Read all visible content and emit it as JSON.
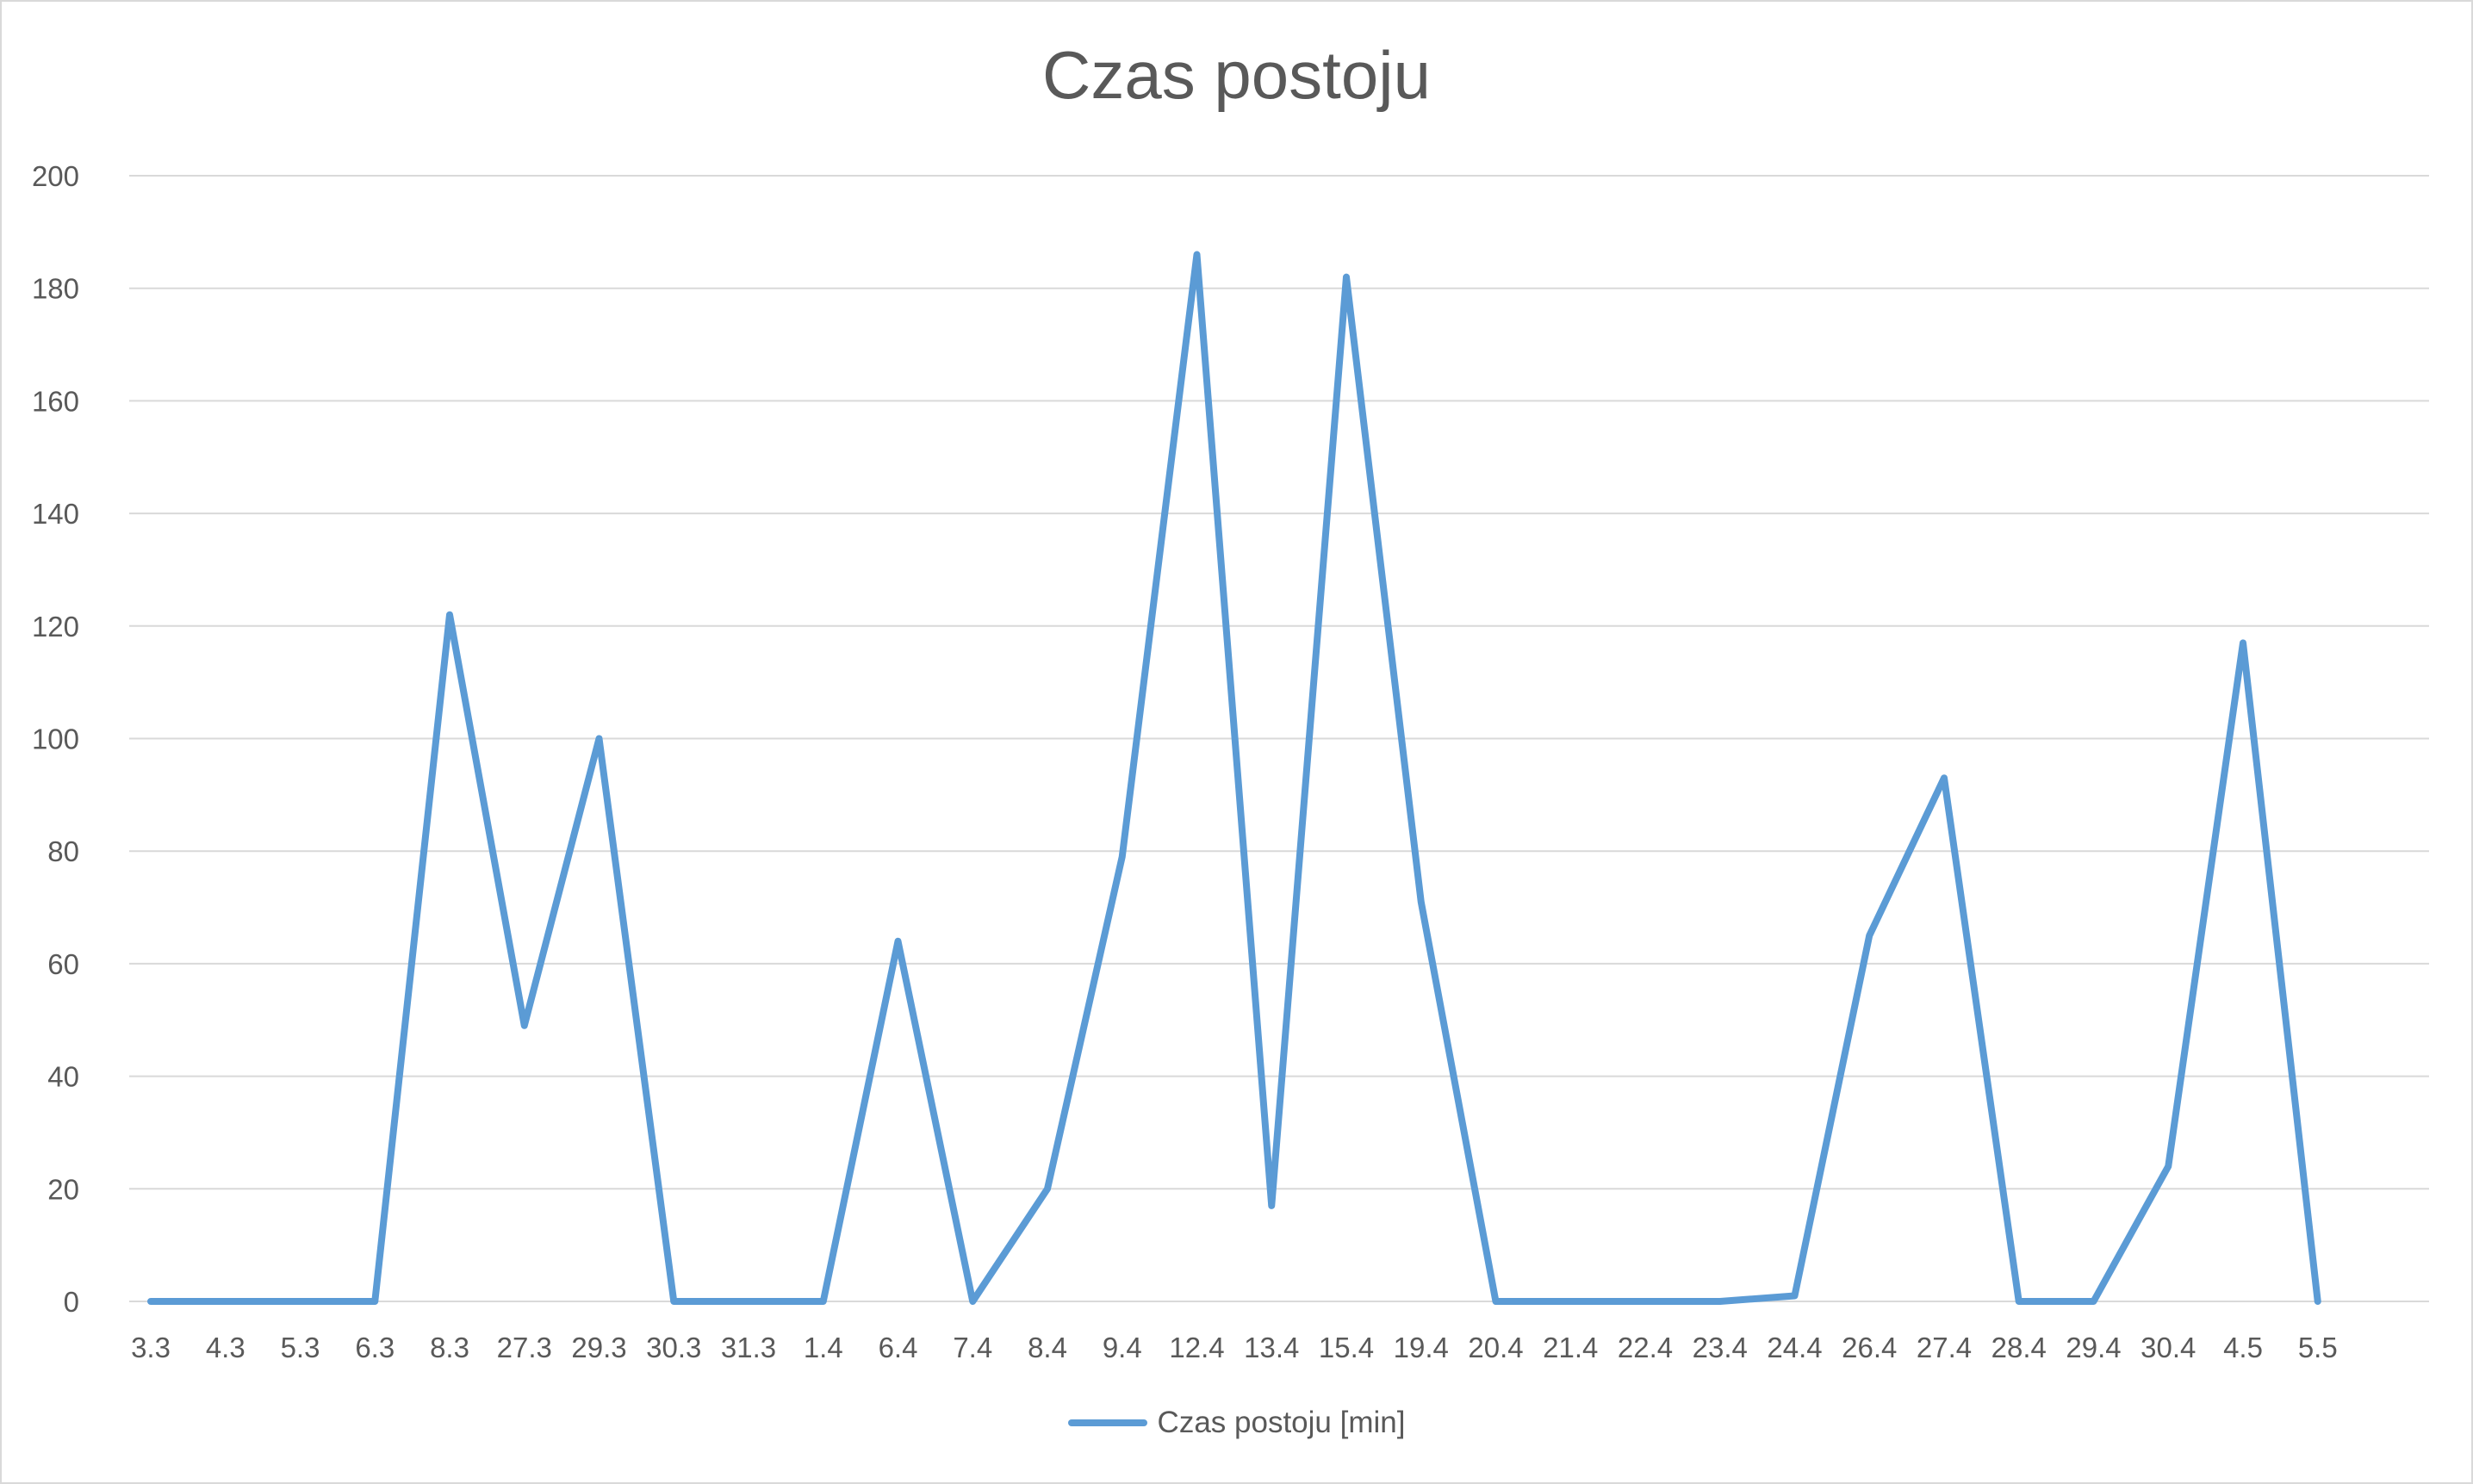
{
  "chart_data": {
    "type": "line",
    "title": "Czas postoju",
    "xlabel": "",
    "ylabel": "",
    "ylim": [
      0,
      200
    ],
    "yticks": [
      0,
      20,
      40,
      60,
      80,
      100,
      120,
      140,
      160,
      180,
      200
    ],
    "grid": true,
    "legend_position": "bottom",
    "categories": [
      "3.3",
      "4.3",
      "5.3",
      "6.3",
      "8.3",
      "27.3",
      "29.3",
      "30.3",
      "31.3",
      "1.4",
      "6.4",
      "7.4",
      "8.4",
      "9.4",
      "12.4",
      "13.4",
      "15.4",
      "19.4",
      "20.4",
      "21.4",
      "22.4",
      "23.4",
      "24.4",
      "26.4",
      "27.4",
      "28.4",
      "29.4",
      "30.4",
      "4.5",
      "5.5"
    ],
    "series": [
      {
        "name": "Czas postoju [min]",
        "color": "#5b9bd5",
        "values": [
          0,
          0,
          0,
          0,
          122,
          49,
          100,
          0,
          0,
          0,
          64,
          0,
          20,
          79,
          186,
          17,
          182,
          71,
          0,
          0,
          0,
          0,
          1,
          65,
          93,
          0,
          0,
          24,
          117,
          0
        ]
      }
    ]
  },
  "colors": {
    "line": "#5b9bd5",
    "grid": "#d9d9d9",
    "text": "#595959"
  }
}
